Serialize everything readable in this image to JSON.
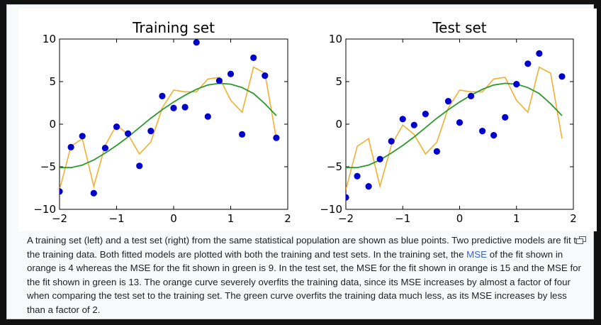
{
  "caption": {
    "part1": "A training set (left) and a test set (right) from the same statistical population are shown as blue points. Two predictive models are fit to the training data. Both fitted models are plotted with both the training and test sets. In the training set, the ",
    "link": "MSE",
    "part2": " of the fit shown in orange is 4 whereas the MSE for the fit shown in green is 9. In the test set, the MSE for the fit shown in orange is 15 and the MSE for the fit shown in green is 13. The orange curve severely overfits the training data, since its MSE increases by almost a factor of four when comparing the test set to the training set. The green curve overfits the training data much less, as its MSE increases by less than a factor of 2."
  },
  "icons": {
    "enlarge": "enlarge-icon"
  },
  "colors": {
    "points": "#0000cc",
    "orange_fit": "#f0b030",
    "green_fit": "#2e9a2e",
    "frame_bg": "#f8f9fa"
  },
  "chart_data": [
    {
      "type": "scatter",
      "title": "Training set",
      "xlim": [
        -2,
        2
      ],
      "ylim": [
        -10,
        10
      ],
      "xticks": [
        "−2",
        "−1",
        "0",
        "1",
        "2"
      ],
      "yticks": [
        "10",
        "5",
        "0",
        "−5",
        "−10"
      ],
      "grid": false,
      "points": [
        [
          -2.0,
          -7.9
        ],
        [
          -1.8,
          -2.7
        ],
        [
          -1.6,
          -1.4
        ],
        [
          -1.4,
          -8.1
        ],
        [
          -1.2,
          -2.8
        ],
        [
          -1.0,
          -0.3
        ],
        [
          -0.8,
          -1.1
        ],
        [
          -0.6,
          -4.9
        ],
        [
          -0.4,
          -0.8
        ],
        [
          -0.2,
          3.3
        ],
        [
          0.0,
          1.9
        ],
        [
          0.2,
          2.0
        ],
        [
          0.4,
          9.6
        ],
        [
          0.6,
          0.9
        ],
        [
          0.8,
          5.1
        ],
        [
          1.0,
          5.9
        ],
        [
          1.2,
          -1.2
        ],
        [
          1.4,
          7.8
        ],
        [
          1.6,
          5.7
        ],
        [
          1.8,
          -1.6
        ]
      ],
      "series": [
        {
          "x": [
            -2.0,
            -1.8,
            -1.6,
            -1.4,
            -1.2,
            -1.0,
            -0.8,
            -0.6,
            -0.4,
            -0.2,
            0.0,
            0.2,
            0.4,
            0.6,
            0.8,
            1.0,
            1.2,
            1.4,
            1.6,
            1.8
          ],
          "y": [
            -7.7,
            -2.6,
            -1.7,
            -7.3,
            -2.5,
            -0.1,
            -1.2,
            -3.5,
            -2.1,
            1.9,
            4.0,
            3.8,
            3.8,
            5.3,
            5.5,
            2.8,
            1.4,
            6.7,
            6.0,
            -1.7
          ]
        },
        {
          "x": [
            -2.0,
            -1.8,
            -1.6,
            -1.4,
            -1.2,
            -1.0,
            -0.8,
            -0.6,
            -0.4,
            -0.2,
            0.0,
            0.2,
            0.4,
            0.6,
            0.8,
            1.0,
            1.2,
            1.4,
            1.6,
            1.8
          ],
          "y": [
            -5.1,
            -5.1,
            -4.8,
            -4.2,
            -3.4,
            -2.5,
            -1.5,
            -0.4,
            0.7,
            1.7,
            2.6,
            3.4,
            4.1,
            4.6,
            4.8,
            4.7,
            4.3,
            3.6,
            2.4,
            1.0
          ]
        }
      ]
    },
    {
      "type": "scatter",
      "title": "Test set",
      "xlim": [
        -2,
        2
      ],
      "ylim": [
        -10,
        10
      ],
      "xticks": [
        "−2",
        "−1",
        "0",
        "1",
        "2"
      ],
      "yticks": [
        "10",
        "5",
        "0",
        "−5",
        "−10"
      ],
      "grid": false,
      "points": [
        [
          -2.0,
          -8.6
        ],
        [
          -1.8,
          -6.1
        ],
        [
          -1.6,
          -7.3
        ],
        [
          -1.4,
          -4.1
        ],
        [
          -1.2,
          -2.0
        ],
        [
          -1.0,
          0.6
        ],
        [
          -0.8,
          -0.1
        ],
        [
          -0.6,
          1.2
        ],
        [
          -0.4,
          -3.2
        ],
        [
          -0.2,
          2.7
        ],
        [
          0.0,
          0.2
        ],
        [
          0.2,
          3.3
        ],
        [
          0.4,
          -0.8
        ],
        [
          0.6,
          -1.3
        ],
        [
          0.8,
          0.8
        ],
        [
          1.0,
          4.7
        ],
        [
          1.2,
          7.1
        ],
        [
          1.4,
          8.3
        ],
        [
          1.8,
          5.6
        ]
      ],
      "series": [
        {
          "x": [
            -2.0,
            -1.8,
            -1.6,
            -1.4,
            -1.2,
            -1.0,
            -0.8,
            -0.6,
            -0.4,
            -0.2,
            0.0,
            0.2,
            0.4,
            0.6,
            0.8,
            1.0,
            1.2,
            1.4,
            1.6,
            1.8
          ],
          "y": [
            -7.7,
            -2.6,
            -1.7,
            -7.3,
            -2.5,
            -0.1,
            -1.2,
            -3.5,
            -2.1,
            1.9,
            4.0,
            3.8,
            3.8,
            5.3,
            5.5,
            2.8,
            1.4,
            6.7,
            6.0,
            -1.7
          ]
        },
        {
          "x": [
            -2.0,
            -1.8,
            -1.6,
            -1.4,
            -1.2,
            -1.0,
            -0.8,
            -0.6,
            -0.4,
            -0.2,
            0.0,
            0.2,
            0.4,
            0.6,
            0.8,
            1.0,
            1.2,
            1.4,
            1.6,
            1.8
          ],
          "y": [
            -5.1,
            -5.1,
            -4.8,
            -4.2,
            -3.4,
            -2.5,
            -1.5,
            -0.4,
            0.7,
            1.7,
            2.6,
            3.4,
            4.1,
            4.6,
            4.8,
            4.7,
            4.3,
            3.6,
            2.4,
            1.0
          ]
        }
      ]
    }
  ]
}
